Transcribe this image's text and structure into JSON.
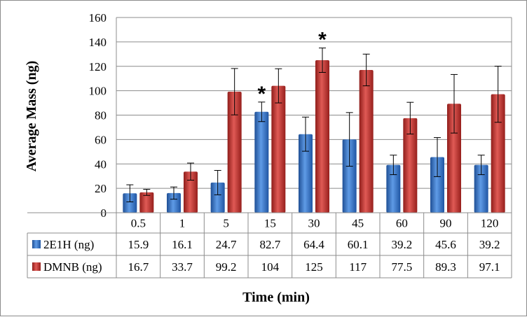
{
  "chart_data": {
    "type": "bar",
    "title": "",
    "xlabel": "Time (min)",
    "ylabel": "Average Mass (ng)",
    "ylim": [
      0,
      160
    ],
    "yticks": [
      0,
      20,
      40,
      60,
      80,
      100,
      120,
      140,
      160
    ],
    "ytick_labels": [
      "0",
      "20",
      "40",
      "60",
      "80",
      "100",
      "120",
      "140",
      "160"
    ],
    "categories": [
      "0.5",
      "1",
      "5",
      "15",
      "30",
      "45",
      "60",
      "90",
      "120"
    ],
    "grid": "horizontal",
    "legend": "data table",
    "series": [
      {
        "name": "2E1H (ng)",
        "color": "#2f6fc6",
        "values": [
          15.9,
          16.1,
          24.7,
          82.7,
          64.4,
          60.1,
          39.2,
          45.6,
          39.2
        ],
        "value_labels": [
          "15.9",
          "16.1",
          "24.7",
          "82.7",
          "64.4",
          "60.1",
          "39.2",
          "45.6",
          "39.2"
        ],
        "error": [
          7,
          5,
          10,
          8,
          14,
          22,
          8,
          16,
          8
        ]
      },
      {
        "name": "DMNB (ng)",
        "color": "#c9302c",
        "values": [
          16.7,
          33.7,
          99.2,
          104,
          125,
          117,
          77.5,
          89.3,
          97.1
        ],
        "value_labels": [
          "16.7",
          "33.7",
          "99.2",
          "104",
          "125",
          "117",
          "77.5",
          "89.3",
          "97.1"
        ],
        "error": [
          2.5,
          7,
          19,
          14,
          10,
          13,
          13,
          24,
          23
        ]
      }
    ],
    "annotations": [
      {
        "text": "*",
        "category": "15",
        "series": 0
      },
      {
        "text": "*",
        "category": "30",
        "series": 1
      }
    ]
  }
}
